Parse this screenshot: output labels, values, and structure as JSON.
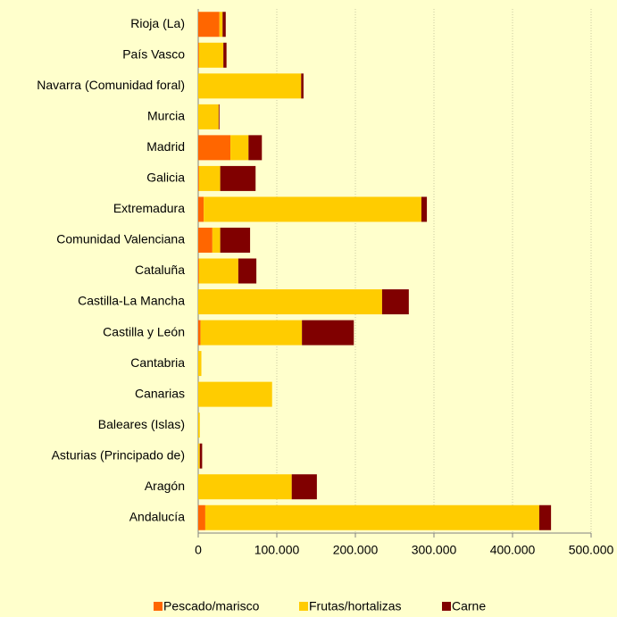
{
  "chart_data": {
    "type": "bar",
    "orientation": "horizontal",
    "stacked": true,
    "categories": [
      "Rioja (La)",
      "País Vasco",
      "Navarra (Comunidad foral)",
      "Murcia",
      "Madrid",
      "Galicia",
      "Extremadura",
      "Comunidad Valenciana",
      "Cataluña",
      "Castilla-La Mancha",
      "Castilla y León",
      "Cantabria",
      "Canarias",
      "Baleares (Islas)",
      "Asturias (Principado de)",
      "Aragón",
      "Andalucía"
    ],
    "series": [
      {
        "name": "Pescado/marisco",
        "color": "#ff6600",
        "values": [
          27000,
          1000,
          0,
          0,
          41000,
          1000,
          7000,
          18000,
          1000,
          0,
          3000,
          0,
          0,
          0,
          0,
          0,
          9000
        ]
      },
      {
        "name": "Frutas/hortalizas",
        "color": "#ffcc00",
        "values": [
          4000,
          31000,
          131000,
          26000,
          23000,
          27000,
          277000,
          10000,
          50000,
          234000,
          129000,
          4000,
          94000,
          2000,
          2000,
          119000,
          425000
        ]
      },
      {
        "name": "Carne",
        "color": "#800000",
        "values": [
          4000,
          4000,
          3000,
          1000,
          17000,
          45000,
          7000,
          38000,
          23000,
          34000,
          66000,
          0,
          0,
          0,
          3000,
          32000,
          15000
        ]
      }
    ],
    "xlim": [
      0,
      500000
    ],
    "xticks": [
      0,
      {
        "value": 100000,
        "label": "100.000"
      },
      {
        "value": 200000,
        "label": "200.000"
      },
      {
        "value": 300000,
        "label": "300.000"
      },
      {
        "value": 400000,
        "label": "400.000"
      },
      {
        "value": 500000,
        "label": "500.000"
      }
    ],
    "grid": true,
    "legend": "bottom"
  }
}
